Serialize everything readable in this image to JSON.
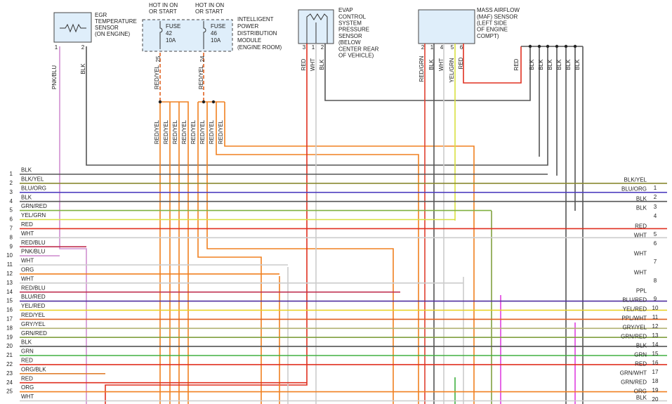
{
  "egr_sensor": {
    "label": [
      "EGR",
      "TEMPERATURE",
      "SENSOR",
      "(ON ENGINE)"
    ],
    "pins": [
      "1",
      "2"
    ]
  },
  "ipdm": {
    "hot_labels": [
      [
        "HOT IN ON",
        "OR START"
      ],
      [
        "HOT IN ON",
        "OR START"
      ]
    ],
    "fuses": [
      [
        "FUSE",
        "42",
        "10A"
      ],
      [
        "FUSE",
        "46",
        "10A"
      ]
    ],
    "label": [
      "INTELLIGENT",
      "POWER",
      "DISTRIBUTION",
      "MODULE",
      "(ENGINE ROOM)"
    ],
    "pins": [
      "25",
      "24"
    ]
  },
  "evap_sensor": {
    "label": [
      "EVAP",
      "CONTROL",
      "SYSTEM",
      "PRESSURE",
      "SENSOR",
      "(BELOW",
      "CENTER REAR",
      "OF VEHICLE)"
    ],
    "pins": [
      "3",
      "1",
      "2"
    ]
  },
  "maf_sensor": {
    "label": [
      "MASS AIRFLOW",
      "(MAF) SENSOR",
      "(LEFT SIDE",
      "OF ENGINE",
      "COMPT)"
    ],
    "pins": [
      "2",
      "1",
      "4",
      "5",
      "6"
    ]
  },
  "wire_labels": [
    "PNK/BLU",
    "BLK",
    "RED/YEL",
    "RED/YEL",
    "RED",
    "WHT",
    "BLK",
    "RED/GRN",
    "BLK",
    "WHT",
    "YEL/GRN",
    "RED",
    "RED",
    "BLK",
    "BLK",
    "BLK",
    "BLK",
    "BLK",
    "BLK",
    "RED/YEL",
    "RED/YEL",
    "RED/YEL",
    "RED/YEL",
    "RED/YEL",
    "RED/YEL",
    "RED/YEL",
    "RED/YEL"
  ],
  "left_rows": [
    {
      "num": "1",
      "label": "BLK",
      "color": "#555555"
    },
    {
      "num": "2",
      "label": "BLK/YEL",
      "color": "#8a8a30"
    },
    {
      "num": "3",
      "label": "BLU/ORG",
      "color": "#5040c0"
    },
    {
      "num": "4",
      "label": "BLK",
      "color": "#555555"
    },
    {
      "num": "5",
      "label": "GRN/RED",
      "color": "#80b040"
    },
    {
      "num": "6",
      "label": "YEL/GRN",
      "color": "#d8e040"
    },
    {
      "num": "7",
      "label": "RED",
      "color": "#e03020"
    },
    {
      "num": "8",
      "label": "WHT",
      "color": "#cccccc"
    },
    {
      "num": "9",
      "label": "RED/BLU",
      "color": "#c03050"
    },
    {
      "num": "10",
      "label": "PNK/BLU",
      "color": "#d090d0"
    },
    {
      "num": "11",
      "label": "WHT",
      "color": "#cccccc"
    },
    {
      "num": "12",
      "label": "ORG",
      "color": "#f08020"
    },
    {
      "num": "13",
      "label": "WHT",
      "color": "#cccccc"
    },
    {
      "num": "14",
      "label": "RED/BLU",
      "color": "#c03050"
    },
    {
      "num": "15",
      "label": "BLU/RED",
      "color": "#5030a0"
    },
    {
      "num": "16",
      "label": "YEL/RED",
      "color": "#e8d020"
    },
    {
      "num": "17",
      "label": "RED/YEL",
      "color": "#e06020"
    },
    {
      "num": "18",
      "label": "GRY/YEL",
      "color": "#b0b070"
    },
    {
      "num": "19",
      "label": "GRN/RED",
      "color": "#80a040"
    },
    {
      "num": "20",
      "label": "BLK",
      "color": "#555555"
    },
    {
      "num": "21",
      "label": "GRN",
      "color": "#40b040"
    },
    {
      "num": "22",
      "label": "RED",
      "color": "#e03020"
    },
    {
      "num": "23",
      "label": "ORG/BLK",
      "color": "#e08030"
    },
    {
      "num": "24",
      "label": "RED",
      "color": "#e03020"
    },
    {
      "num": "25",
      "label": "ORG",
      "color": "#f08020"
    },
    {
      "label": "WHT",
      "color": "#cccccc"
    }
  ],
  "right_rows": [
    {
      "num": "1",
      "label": "BLK/YEL"
    },
    {
      "num": "2",
      "label": "BLU/ORG"
    },
    {
      "num": "3",
      "label": "BLK"
    },
    {
      "num": "4",
      "label": "BLK"
    },
    {
      "num": "5",
      "label": "RED"
    },
    {
      "num": "6",
      "label": "WHT"
    },
    {
      "num": "7",
      "label": "WHT"
    },
    {
      "num": "8",
      "label": "WHT"
    },
    {
      "num": "9",
      "label": "PPL"
    },
    {
      "num": "10",
      "label": "BLU/RED"
    },
    {
      "num": "11",
      "label": "YEL/RED"
    },
    {
      "num": "12",
      "label": "PPL/WHT"
    },
    {
      "num": "13",
      "label": "GRY/YEL"
    },
    {
      "num": "14",
      "label": "GRN/RED"
    },
    {
      "num": "15",
      "label": "BLK"
    },
    {
      "num": "16",
      "label": "GRN"
    },
    {
      "num": "17",
      "label": "RED"
    },
    {
      "num": "18",
      "label": "GRN/WHT"
    },
    {
      "num": "19",
      "label": "GRN/RED"
    },
    {
      "num": "20",
      "label": "ORG"
    },
    {
      "label": "BLK"
    }
  ]
}
